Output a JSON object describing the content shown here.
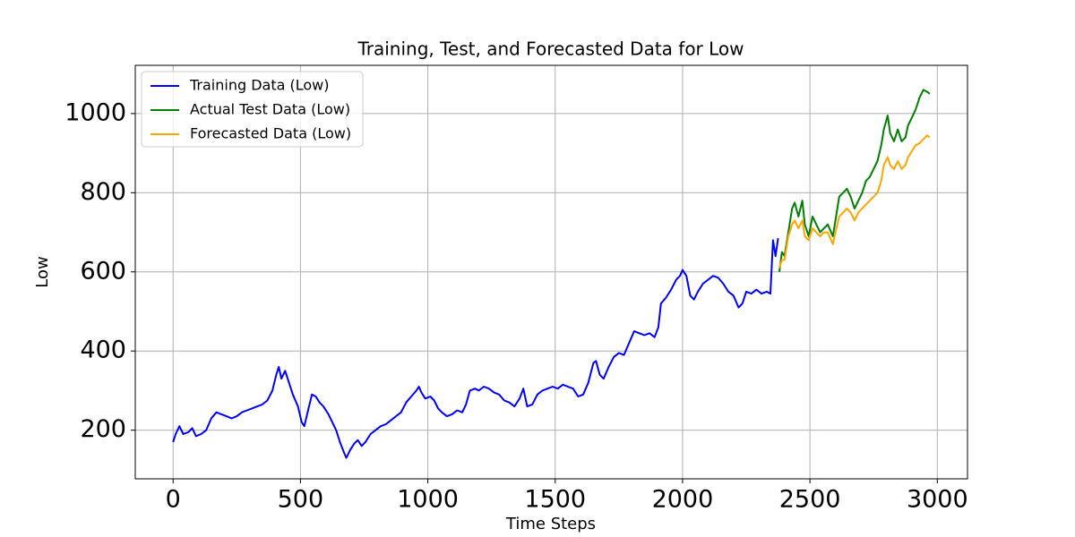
{
  "chart_data": {
    "type": "line",
    "title": "Training, Test, and Forecasted Data for Low",
    "xlabel": "Time Steps",
    "ylabel": "Low",
    "xlim": [
      -148.5,
      3118.5
    ],
    "ylim": [
      77,
      1122
    ],
    "xticks": [
      0,
      500,
      1000,
      1500,
      2000,
      2500,
      3000
    ],
    "yticks": [
      200,
      400,
      600,
      800,
      1000
    ],
    "grid": true,
    "legend": "upper left",
    "series": [
      {
        "name": "Training Data (Low)",
        "color": "#0000ff",
        "x": [
          0,
          10,
          25,
          40,
          60,
          75,
          90,
          110,
          130,
          150,
          170,
          190,
          210,
          230,
          250,
          270,
          290,
          310,
          330,
          350,
          370,
          390,
          405,
          415,
          425,
          440,
          455,
          470,
          490,
          505,
          515,
          530,
          545,
          560,
          575,
          590,
          610,
          625,
          640,
          655,
          670,
          680,
          695,
          710,
          725,
          740,
          755,
          775,
          795,
          815,
          835,
          855,
          875,
          895,
          915,
          935,
          955,
          965,
          975,
          990,
          1010,
          1025,
          1040,
          1055,
          1075,
          1095,
          1115,
          1135,
          1150,
          1165,
          1185,
          1200,
          1220,
          1240,
          1260,
          1280,
          1300,
          1320,
          1340,
          1360,
          1375,
          1390,
          1410,
          1430,
          1450,
          1470,
          1490,
          1510,
          1530,
          1550,
          1570,
          1590,
          1610,
          1630,
          1650,
          1660,
          1675,
          1690,
          1710,
          1730,
          1750,
          1770,
          1790,
          1810,
          1830,
          1850,
          1870,
          1890,
          1905,
          1915,
          1935,
          1955,
          1975,
          1990,
          2000,
          2015,
          2030,
          2045,
          2060,
          2080,
          2100,
          2120,
          2140,
          2160,
          2180,
          2200,
          2220,
          2235,
          2250,
          2270,
          2290,
          2310,
          2330,
          2345,
          2355,
          2365,
          2375
        ],
        "values": [
          170,
          190,
          210,
          190,
          195,
          205,
          185,
          190,
          200,
          230,
          245,
          240,
          235,
          230,
          235,
          245,
          250,
          255,
          260,
          265,
          275,
          300,
          340,
          360,
          330,
          350,
          320,
          290,
          260,
          220,
          210,
          250,
          290,
          285,
          270,
          260,
          240,
          220,
          200,
          170,
          145,
          130,
          150,
          165,
          175,
          160,
          170,
          190,
          200,
          210,
          215,
          225,
          235,
          245,
          270,
          285,
          300,
          310,
          295,
          280,
          285,
          275,
          255,
          245,
          235,
          240,
          250,
          245,
          265,
          300,
          305,
          300,
          310,
          305,
          295,
          290,
          275,
          270,
          260,
          280,
          305,
          260,
          265,
          290,
          300,
          305,
          310,
          305,
          315,
          310,
          305,
          285,
          290,
          320,
          370,
          375,
          340,
          330,
          360,
          385,
          395,
          390,
          420,
          450,
          445,
          440,
          445,
          435,
          460,
          520,
          535,
          555,
          580,
          590,
          605,
          590,
          540,
          530,
          550,
          570,
          580,
          590,
          585,
          570,
          550,
          540,
          510,
          520,
          550,
          545,
          555,
          545,
          550,
          545,
          680,
          640,
          685
        ]
      },
      {
        "name": "Actual Test Data (Low)",
        "color": "#008000",
        "x": [
          2380,
          2390,
          2400,
          2415,
          2430,
          2440,
          2455,
          2470,
          2480,
          2495,
          2510,
          2525,
          2540,
          2555,
          2570,
          2590,
          2600,
          2615,
          2630,
          2645,
          2660,
          2675,
          2690,
          2705,
          2720,
          2735,
          2750,
          2765,
          2780,
          2790,
          2805,
          2815,
          2830,
          2845,
          2860,
          2875,
          2885,
          2900,
          2915,
          2930,
          2945,
          2960,
          2970
        ],
        "values": [
          600,
          650,
          640,
          700,
          760,
          775,
          740,
          780,
          720,
          690,
          740,
          720,
          700,
          710,
          720,
          690,
          730,
          790,
          800,
          810,
          790,
          760,
          780,
          800,
          830,
          840,
          860,
          880,
          920,
          960,
          995,
          950,
          930,
          960,
          930,
          940,
          970,
          990,
          1010,
          1040,
          1060,
          1055,
          1050
        ]
      },
      {
        "name": "Forecasted Data (Low)",
        "color": "#ffa500",
        "x": [
          2380,
          2390,
          2400,
          2415,
          2430,
          2440,
          2455,
          2470,
          2480,
          2495,
          2510,
          2525,
          2540,
          2555,
          2570,
          2590,
          2600,
          2615,
          2630,
          2645,
          2660,
          2675,
          2690,
          2705,
          2720,
          2735,
          2750,
          2765,
          2780,
          2790,
          2805,
          2815,
          2830,
          2845,
          2860,
          2875,
          2885,
          2900,
          2915,
          2930,
          2945,
          2960,
          2970
        ],
        "values": [
          610,
          630,
          630,
          690,
          720,
          730,
          710,
          730,
          690,
          680,
          710,
          700,
          690,
          700,
          700,
          670,
          700,
          740,
          750,
          760,
          750,
          730,
          750,
          760,
          770,
          780,
          790,
          800,
          830,
          870,
          890,
          870,
          860,
          880,
          860,
          870,
          890,
          905,
          920,
          925,
          935,
          945,
          940
        ]
      }
    ]
  }
}
